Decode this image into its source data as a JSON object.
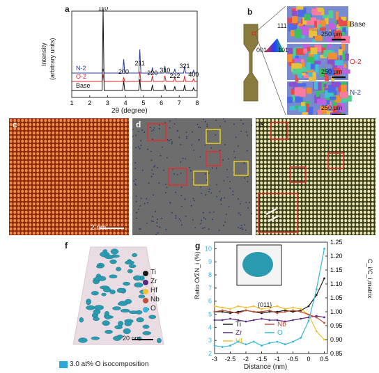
{
  "panels": {
    "a": "a",
    "b": "b",
    "c": "c",
    "d": "d",
    "e": "e",
    "f": "f",
    "g": "g"
  },
  "panel_a": {
    "ylabel_line1": "Intensity",
    "ylabel_line2": "(arbitrary units)",
    "xlabel": "2θ (degree)",
    "xticks": [
      "1",
      "2",
      "3",
      "4",
      "5",
      "6",
      "7",
      "8"
    ],
    "curves": [
      {
        "name": "N-2",
        "color": "#2b3a9a"
      },
      {
        "name": "O-2",
        "color": "#d6262a"
      },
      {
        "name": "Base",
        "color": "#111111"
      }
    ],
    "peaks": [
      "110",
      "200",
      "211",
      "220",
      "310",
      "222",
      "321",
      "400"
    ]
  },
  "panel_b": {
    "legend": [
      "111",
      "001",
      "101"
    ],
    "maps": [
      {
        "label": "Base",
        "color": "#111111",
        "scale": "250 μm"
      },
      {
        "label": "O-2",
        "color": "#d6262a",
        "scale": "250 μm"
      },
      {
        "label": "N-2",
        "color": "#2b3a9a",
        "scale": "250 μm"
      }
    ]
  },
  "panel_c": {
    "scale": "2 nm"
  },
  "panel_f": {
    "legend": [
      {
        "name": "Ti",
        "color": "#1a1a1a"
      },
      {
        "name": "Zr",
        "color": "#5a2a7a"
      },
      {
        "name": "Hf",
        "color": "#f2c12e"
      },
      {
        "name": "Nb",
        "color": "#c0503a"
      },
      {
        "name": "O",
        "color": "#35b5d8"
      }
    ],
    "scale": "20 nm",
    "isolabel": "3.0 at% O isocomposition"
  },
  "panel_g": {
    "ylabel_left": "Ratio O/ΣN_i (%)",
    "ylabel_right": "C_i/C_i,matrix",
    "xlabel": "Distance (nm)",
    "inset_label": "{011}",
    "legend": [
      {
        "name": "Ti",
        "color": "#1a1a1a"
      },
      {
        "name": "Nb",
        "color": "#c0503a"
      },
      {
        "name": "Zr",
        "color": "#5a2a7a"
      },
      {
        "name": "O",
        "color": "#35b5d8"
      },
      {
        "name": "Hf",
        "color": "#f2c12e"
      }
    ],
    "xticks": [
      "-3",
      "-2.5",
      "-2",
      "-1.5",
      "-1",
      "-0.5",
      "0",
      "0.5"
    ],
    "yticks_left": [
      "2",
      "3",
      "4",
      "5",
      "6",
      "7",
      "8",
      "9",
      "10"
    ],
    "yticks_right": [
      "0.85",
      "0.90",
      "0.95",
      "1.00",
      "1.05",
      "1.10",
      "1.15",
      "1.20",
      "1.25"
    ]
  },
  "chart_data": [
    {
      "type": "line",
      "xlabel": "2θ (degree)",
      "ylabel": "Intensity (arbitrary units)",
      "xlim": [
        1,
        8
      ],
      "series": [
        {
          "name": "N-2",
          "peaks": [
            {
              "x": 2.75,
              "label": "110"
            },
            {
              "x": 3.9,
              "label": "200"
            },
            {
              "x": 4.8,
              "label": "211"
            },
            {
              "x": 5.5,
              "label": "220"
            },
            {
              "x": 6.2,
              "label": "310"
            },
            {
              "x": 6.75,
              "label": "222"
            },
            {
              "x": 7.3,
              "label": "321"
            },
            {
              "x": 7.8,
              "label": "400"
            }
          ]
        },
        {
          "name": "O-2",
          "peaks": [
            {
              "x": 2.75
            },
            {
              "x": 3.9
            },
            {
              "x": 4.8
            },
            {
              "x": 5.5
            },
            {
              "x": 6.2
            },
            {
              "x": 6.75
            },
            {
              "x": 7.3
            },
            {
              "x": 7.8
            }
          ]
        },
        {
          "name": "Base",
          "peaks": [
            {
              "x": 2.75
            },
            {
              "x": 3.9
            },
            {
              "x": 4.8
            },
            {
              "x": 5.5
            },
            {
              "x": 6.2
            },
            {
              "x": 6.75
            },
            {
              "x": 7.3
            },
            {
              "x": 7.8
            }
          ]
        }
      ]
    },
    {
      "type": "line",
      "xlabel": "Distance (nm)",
      "ylabel": "Ratio O/ΣN_i (%)",
      "y2label": "C_i/C_i,matrix",
      "xlim": [
        -3,
        0.6
      ],
      "ylim": [
        2,
        10.5
      ],
      "y2lim": [
        0.85,
        1.25
      ],
      "x": [
        -3,
        -2.75,
        -2.5,
        -2.25,
        -2,
        -1.75,
        -1.5,
        -1.25,
        -1,
        -0.75,
        -0.5,
        -0.25,
        0,
        0.25,
        0.5
      ],
      "series": [
        {
          "name": "Ti",
          "axis": "right",
          "values": [
            1.0,
            1.0,
            0.995,
            1.0,
            1.005,
            1.0,
            0.995,
            1.0,
            1.0,
            1.005,
            1.0,
            1.005,
            1.02,
            1.06,
            1.12
          ]
        },
        {
          "name": "Zr",
          "axis": "right",
          "values": [
            0.97,
            0.97,
            0.975,
            0.97,
            0.965,
            0.97,
            0.975,
            0.97,
            0.97,
            0.965,
            0.97,
            0.975,
            0.98,
            0.985,
            0.98
          ]
        },
        {
          "name": "Hf",
          "axis": "right",
          "values": [
            1.02,
            1.015,
            1.01,
            1.02,
            1.015,
            1.02,
            1.01,
            1.015,
            1.02,
            1.01,
            1.015,
            1.01,
            0.99,
            0.93,
            0.9
          ]
        },
        {
          "name": "Nb",
          "axis": "right",
          "values": [
            1.0,
            1.005,
            1.0,
            0.995,
            1.005,
            1.0,
            1.0,
            1.005,
            0.995,
            1.0,
            1.005,
            1.0,
            0.99,
            0.98,
            0.96
          ]
        },
        {
          "name": "O",
          "axis": "left",
          "values": [
            2.6,
            2.5,
            2.6,
            2.9,
            2.7,
            2.9,
            2.6,
            2.8,
            2.9,
            2.7,
            2.9,
            3.2,
            4.5,
            6.9,
            10.0
          ]
        }
      ]
    }
  ]
}
